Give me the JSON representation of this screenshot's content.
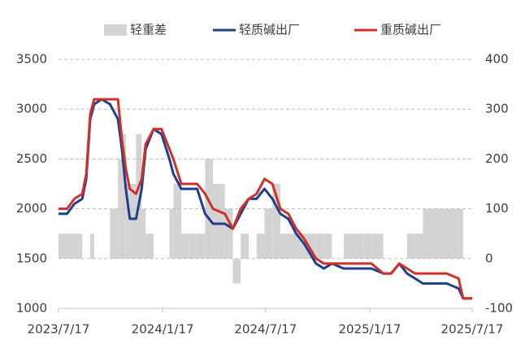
{
  "chart_data": {
    "type": "line",
    "x": [
      "2023/7/17",
      "2023/8/1",
      "2023/8/14",
      "2023/8/28",
      "2023/9/4",
      "2023/9/11",
      "2023/9/18",
      "2023/10/1",
      "2023/10/16",
      "2023/10/30",
      "2023/11/6",
      "2023/11/13",
      "2023/11/20",
      "2023/12/1",
      "2023/12/11",
      "2023/12/18",
      "2024/1/1",
      "2024/1/15",
      "2024/1/29",
      "2024/2/5",
      "2024/2/19",
      "2024/3/4",
      "2024/3/18",
      "2024/4/1",
      "2024/4/15",
      "2024/5/6",
      "2024/5/20",
      "2024/6/3",
      "2024/6/17",
      "2024/7/1",
      "2024/7/15",
      "2024/7/29",
      "2024/8/12",
      "2024/8/26",
      "2024/9/9",
      "2024/9/23",
      "2024/10/14",
      "2024/10/28",
      "2024/11/11",
      "2024/12/2",
      "2025/1/6",
      "2025/1/20",
      "2025/2/10",
      "2025/2/24",
      "2025/3/10",
      "2025/3/24",
      "2025/4/7",
      "2025/4/21",
      "2025/5/12",
      "2025/6/2",
      "2025/6/23",
      "2025/7/1",
      "2025/7/17"
    ],
    "series": [
      {
        "name": "轻重差",
        "color": "#d3d3d3",
        "axis": "y2",
        "kind": "bar",
        "values": [
          50,
          50,
          50,
          0,
          0,
          50,
          0,
          0,
          100,
          200,
          250,
          150,
          150,
          250,
          100,
          50,
          0,
          0,
          100,
          150,
          50,
          50,
          50,
          200,
          150,
          100,
          -50,
          50,
          0,
          50,
          100,
          150,
          50,
          50,
          50,
          50,
          50,
          50,
          0,
          50,
          50,
          50,
          0,
          0,
          0,
          50,
          50,
          100,
          100,
          100,
          100,
          0,
          0
        ]
      },
      {
        "name": "轻质碱出厂",
        "color": "#1f3e8c",
        "values": [
          1950,
          1950,
          2050,
          2100,
          2300,
          2900,
          3050,
          3100,
          3050,
          2900,
          2600,
          2200,
          1900,
          1900,
          2200,
          2600,
          2800,
          2750,
          2500,
          2350,
          2200,
          2200,
          2200,
          1950,
          1850,
          1850,
          1800,
          1950,
          2100,
          2100,
          2200,
          2100,
          1950,
          1900,
          1750,
          1650,
          1450,
          1400,
          1450,
          1400,
          1400,
          1400,
          1350,
          1350,
          1450,
          1350,
          1300,
          1250,
          1250,
          1250,
          1200,
          1100,
          1100
        ]
      },
      {
        "name": "重质碱出厂",
        "color": "#d0302b",
        "values": [
          2000,
          2000,
          2100,
          2150,
          2350,
          2950,
          3100,
          3100,
          3100,
          3100,
          2700,
          2400,
          2200,
          2150,
          2300,
          2650,
          2800,
          2800,
          2600,
          2500,
          2250,
          2250,
          2250,
          2150,
          2000,
          1950,
          1800,
          2000,
          2100,
          2150,
          2300,
          2250,
          2000,
          1950,
          1800,
          1700,
          1500,
          1450,
          1450,
          1450,
          1450,
          1450,
          1350,
          1350,
          1450,
          1400,
          1350,
          1350,
          1350,
          1350,
          1300,
          1100,
          1100
        ]
      }
    ],
    "xlim": [
      "2023/7/17",
      "2025/7/17"
    ],
    "xticks": [
      "2023/7/17",
      "2024/1/17",
      "2024/7/17",
      "2025/1/17",
      "2025/7/17"
    ],
    "ylim": [
      1000,
      3500
    ],
    "yticks": [
      1000,
      1500,
      2000,
      2500,
      3000,
      3500
    ],
    "y2lim": [
      -100,
      400
    ],
    "y2ticks": [
      -100,
      0,
      100,
      200,
      300,
      400
    ],
    "grid": true,
    "legend": "top"
  }
}
